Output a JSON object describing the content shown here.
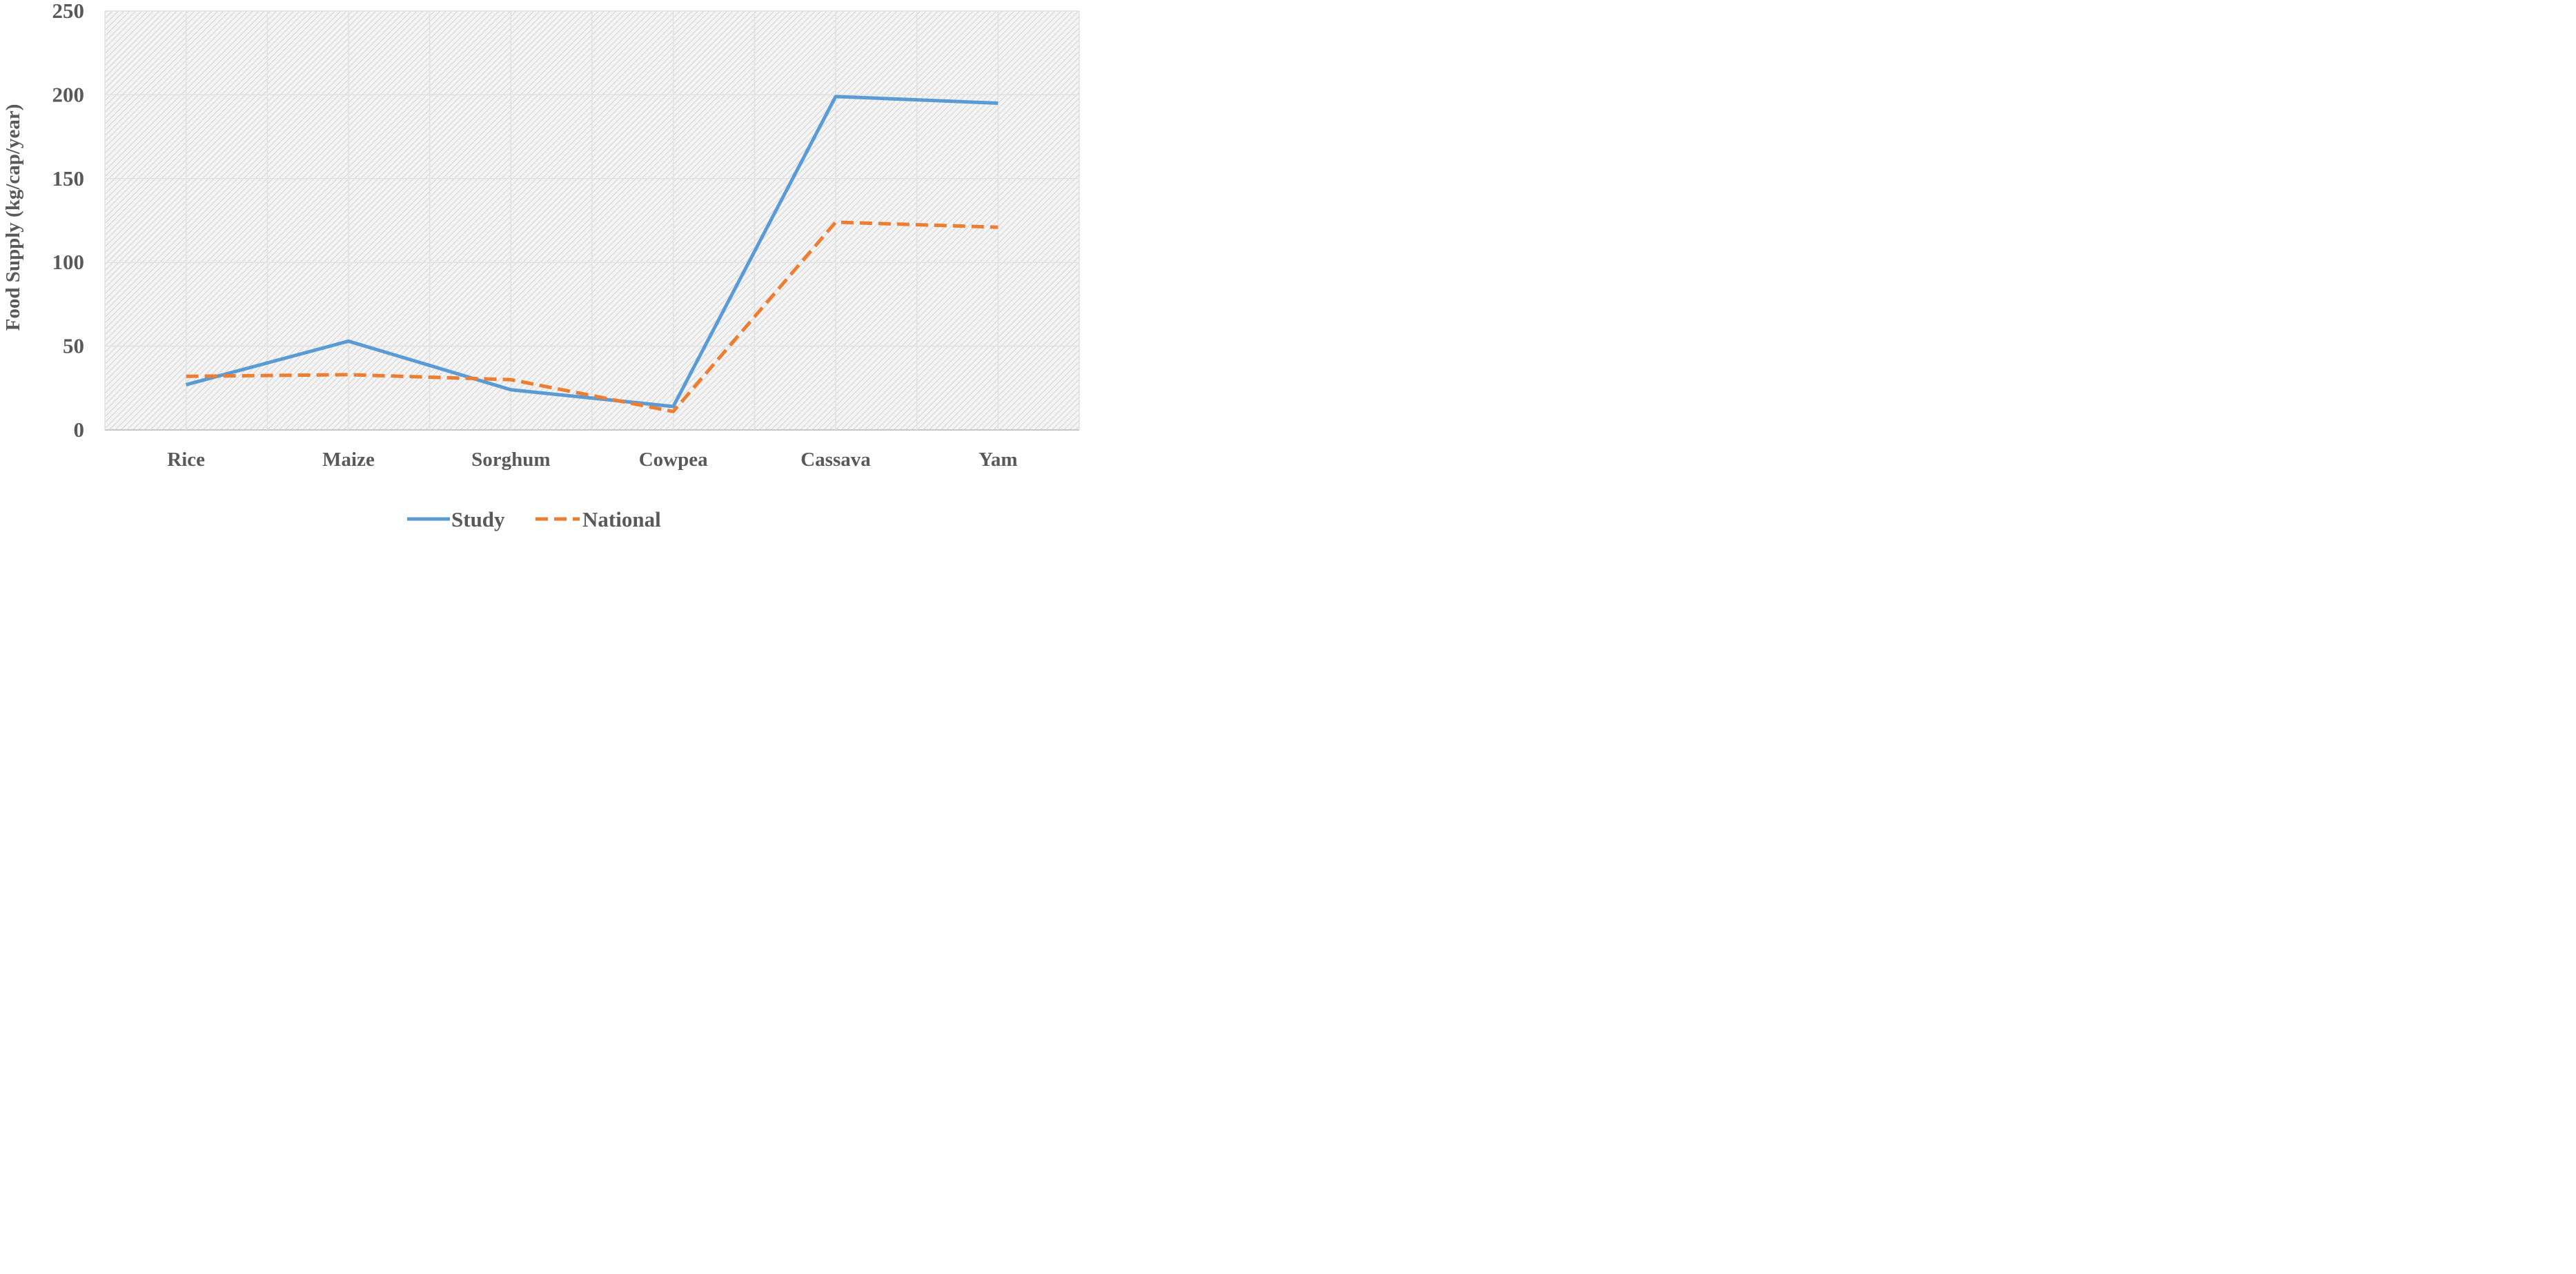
{
  "chart_data": {
    "type": "line",
    "title": "",
    "xlabel": "",
    "ylabel": "Food Supply (kg/cap/year)",
    "categories": [
      "Rice",
      "Maize",
      "Sorghum",
      "Cowpea",
      "Cassava",
      "Yam"
    ],
    "ylim": [
      0,
      250
    ],
    "yticks": [
      0,
      50,
      100,
      150,
      200,
      250
    ],
    "grid": true,
    "legend_position": "bottom",
    "series": [
      {
        "name": "Study",
        "values": [
          27,
          53,
          24,
          14,
          199,
          195
        ],
        "color": "#5b9bd5",
        "style": "solid"
      },
      {
        "name": "National",
        "values": [
          32,
          33,
          30,
          11,
          124,
          121
        ],
        "color": "#ed7d31",
        "style": "dashed"
      }
    ]
  }
}
